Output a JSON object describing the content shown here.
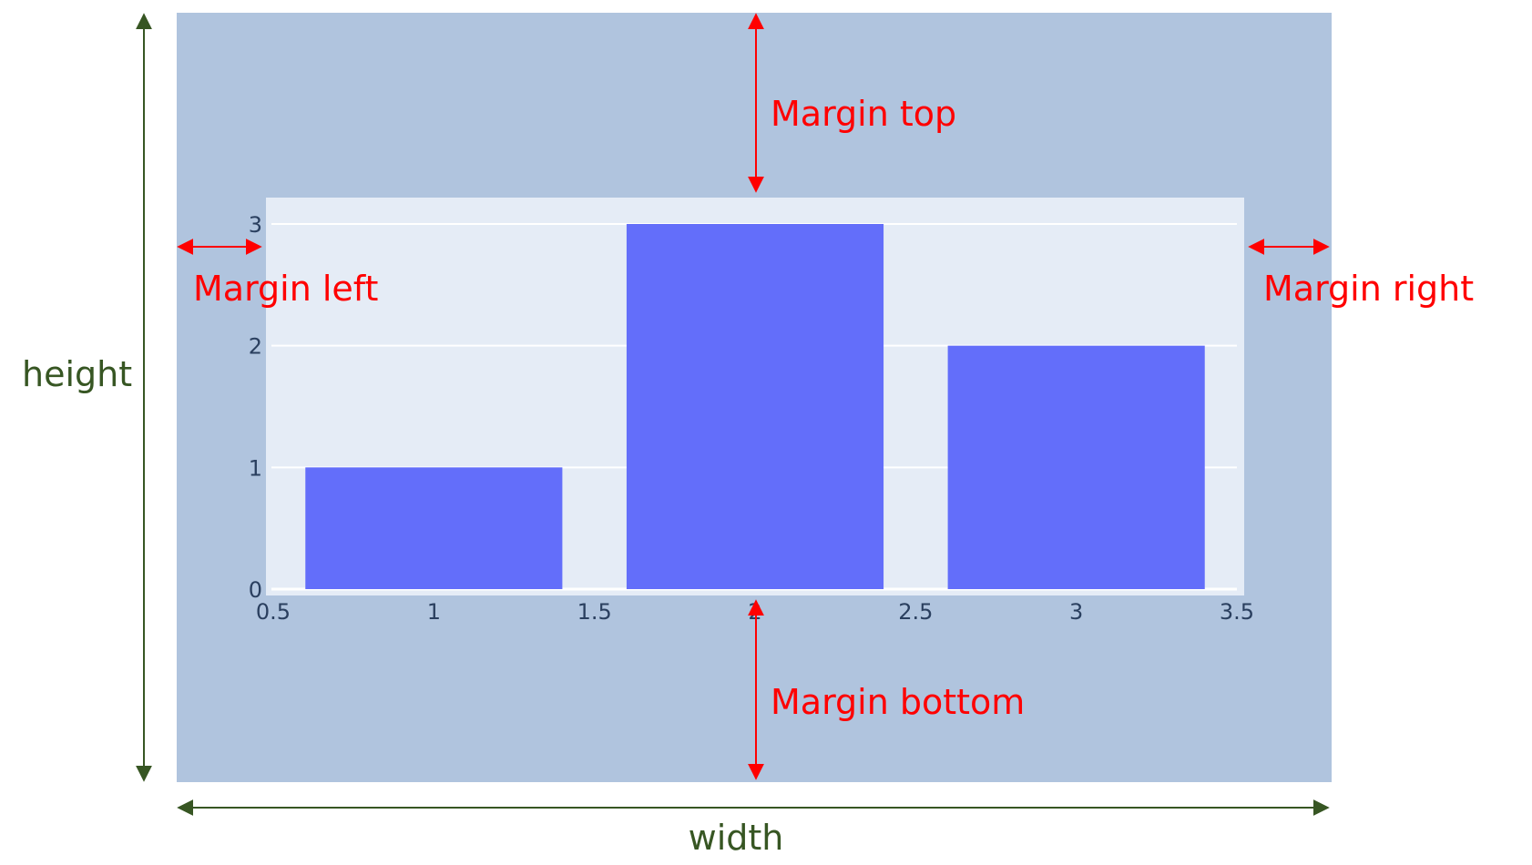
{
  "labels": {
    "margin_top": "Margin top",
    "margin_left": "Margin left",
    "margin_right": "Margin right",
    "margin_bottom": "Margin bottom",
    "height": "height",
    "width": "width"
  },
  "colors": {
    "paper_bg": "#b0c4de",
    "plot_bg": "#e5ecf6",
    "bar": "#636efa",
    "annotation_red": "#ff0000",
    "annotation_green": "#375623",
    "tick_text": "#2a3f5f",
    "grid": "#ffffff"
  },
  "chart_data": {
    "type": "bar",
    "x": [
      1,
      2,
      3
    ],
    "values": [
      1,
      3,
      2
    ],
    "xlim": [
      0.5,
      3.5
    ],
    "ylim": [
      0,
      3
    ],
    "xticks": [
      "0.5",
      "1",
      "1.5",
      "2",
      "2.5",
      "3",
      "3.5"
    ],
    "yticks": [
      "0",
      "1",
      "2",
      "3"
    ],
    "grid": true
  }
}
